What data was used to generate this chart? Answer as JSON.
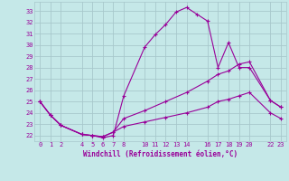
{
  "xlabel": "Windchill (Refroidissement éolien,°C)",
  "bg_color": "#c5e8e8",
  "grid_color": "#a8c8cc",
  "line_color": "#990099",
  "line1_x": [
    0,
    1,
    2,
    4,
    5,
    6,
    7,
    8,
    10,
    11,
    12,
    13,
    14,
    15,
    16,
    17,
    18,
    19,
    20,
    22,
    23
  ],
  "line1_y": [
    25.0,
    23.8,
    22.9,
    22.1,
    22.0,
    21.8,
    22.0,
    25.5,
    29.8,
    30.9,
    31.8,
    32.9,
    33.3,
    32.7,
    32.1,
    28.0,
    30.2,
    28.0,
    28.0,
    25.1,
    24.5
  ],
  "line2_x": [
    0,
    1,
    2,
    4,
    5,
    6,
    7,
    8,
    10,
    12,
    14,
    16,
    17,
    18,
    19,
    20,
    22,
    23
  ],
  "line2_y": [
    25.0,
    23.8,
    22.9,
    22.1,
    22.0,
    21.9,
    22.3,
    23.5,
    24.2,
    25.0,
    25.8,
    26.8,
    27.4,
    27.7,
    28.3,
    28.5,
    25.1,
    24.5
  ],
  "line3_x": [
    0,
    1,
    2,
    4,
    5,
    6,
    7,
    8,
    10,
    12,
    14,
    16,
    17,
    18,
    19,
    20,
    22,
    23
  ],
  "line3_y": [
    25.0,
    23.8,
    22.9,
    22.1,
    22.0,
    21.9,
    22.3,
    22.8,
    23.2,
    23.6,
    24.0,
    24.5,
    25.0,
    25.2,
    25.5,
    25.8,
    24.0,
    23.5
  ],
  "xlim": [
    -0.5,
    23.5
  ],
  "ylim": [
    21.5,
    33.8
  ],
  "xticks": [
    0,
    1,
    2,
    4,
    5,
    6,
    7,
    8,
    10,
    11,
    12,
    13,
    14,
    16,
    17,
    18,
    19,
    20,
    22,
    23
  ],
  "yticks": [
    22,
    23,
    24,
    25,
    26,
    27,
    28,
    29,
    30,
    31,
    32,
    33
  ]
}
